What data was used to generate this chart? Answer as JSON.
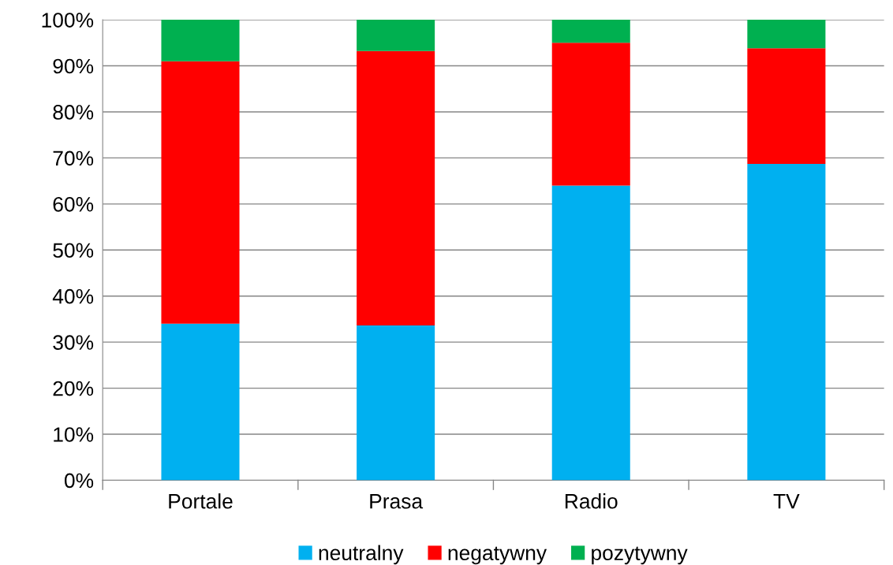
{
  "chart_data": {
    "type": "bar",
    "stacked": true,
    "categories": [
      "Portale",
      "Prasa",
      "Radio",
      "TV"
    ],
    "series": [
      {
        "name": "neutralny",
        "color": "#00b0f0",
        "values": [
          34,
          33.6,
          64,
          68.7
        ]
      },
      {
        "name": "negatywny",
        "color": "#ff0000",
        "values": [
          57,
          59.6,
          31,
          25.1
        ]
      },
      {
        "name": "pozytywny",
        "color": "#00b050",
        "values": [
          9,
          6.8,
          5,
          6.2
        ]
      }
    ],
    "ylim": [
      0,
      100
    ],
    "yticks": [
      {
        "value": 0,
        "label": "0%"
      },
      {
        "value": 10,
        "label": "10%"
      },
      {
        "value": 20,
        "label": "20%"
      },
      {
        "value": 30,
        "label": "30%"
      },
      {
        "value": 40,
        "label": "40%"
      },
      {
        "value": 50,
        "label": "50%"
      },
      {
        "value": 60,
        "label": "60%"
      },
      {
        "value": 70,
        "label": "70%"
      },
      {
        "value": 80,
        "label": "80%"
      },
      {
        "value": 90,
        "label": "90%"
      },
      {
        "value": 100,
        "label": "100%"
      }
    ],
    "grid": "y",
    "legend": "bottom"
  }
}
